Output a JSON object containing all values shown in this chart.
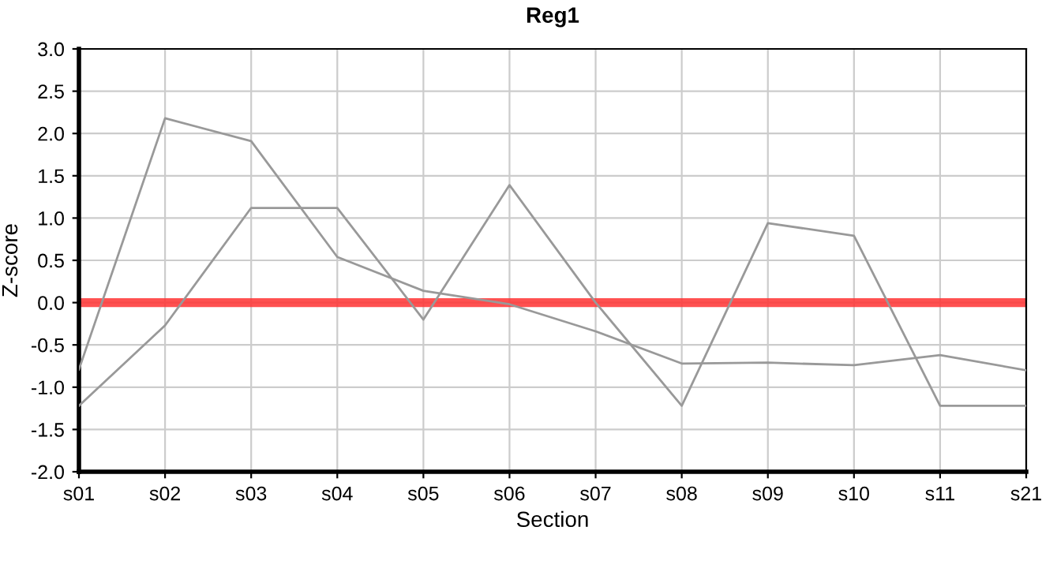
{
  "chart_data": {
    "type": "line",
    "title": "Reg1",
    "xlabel": "Section",
    "ylabel": "Z-score",
    "categories": [
      "s01",
      "s02",
      "s03",
      "s04",
      "s05",
      "s06",
      "s07",
      "s08",
      "s09",
      "s10",
      "s11",
      "s21"
    ],
    "series": [
      {
        "color": "#999999",
        "values": [
          -0.79,
          2.18,
          1.91,
          0.54,
          0.14,
          -0.02,
          -0.34,
          -0.72,
          -0.71,
          -0.74,
          -0.62,
          -0.8
        ]
      },
      {
        "color": "#999999",
        "values": [
          -1.22,
          -0.27,
          1.12,
          1.12,
          -0.2,
          1.39,
          0.0,
          -1.22,
          0.94,
          0.79,
          -1.22,
          -1.22
        ]
      }
    ],
    "ylim": [
      -2.0,
      3.0
    ],
    "yticks": [
      {
        "value": -2,
        "label": "-2.0"
      },
      {
        "value": -1.5,
        "label": "-1.5"
      },
      {
        "value": -1,
        "label": "-1.0"
      },
      {
        "value": -0.5,
        "label": "-0.5"
      },
      {
        "value": 0,
        "label": "0.0"
      },
      {
        "value": 0.5,
        "label": "0.5"
      },
      {
        "value": 1,
        "label": "1.0"
      },
      {
        "value": 1.5,
        "label": "1.5"
      },
      {
        "value": 2,
        "label": "2.0"
      },
      {
        "value": 2.5,
        "label": "2.5"
      },
      {
        "value": 3,
        "label": "3.0"
      }
    ],
    "ref_lines": [
      {
        "axis": "y",
        "value": 0,
        "color": "#ff3333"
      }
    ],
    "grid": true,
    "marker": "none",
    "line_style": "solid"
  }
}
